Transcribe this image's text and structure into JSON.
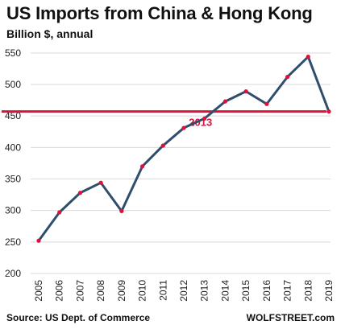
{
  "chart_data": {
    "type": "line",
    "title": "US Imports from China & Hong Kong",
    "subtitle": "Billion $, annual",
    "x": [
      "2005",
      "2006",
      "2007",
      "2008",
      "2009",
      "2010",
      "2011",
      "2012",
      "2013",
      "2014",
      "2015",
      "2016",
      "2017",
      "2018",
      "2019"
    ],
    "series": [
      {
        "values": [
          252,
          297,
          328,
          344,
          299,
          370,
          403,
          431,
          446,
          473,
          489,
          469,
          512,
          544,
          457
        ],
        "color": "#2f4d6c",
        "marker_color": "#e0103a"
      }
    ],
    "ylim": [
      200,
      560
    ],
    "yticks": [
      200,
      250,
      300,
      350,
      400,
      450,
      500,
      550
    ],
    "grid": true,
    "grid_color": "#d9d9d9",
    "reference_line": {
      "value": 457,
      "label": "2013",
      "color": "#e0103a"
    },
    "source": "Source: US Dept. of Commerce",
    "credit": "WOLFSTREET.com"
  }
}
